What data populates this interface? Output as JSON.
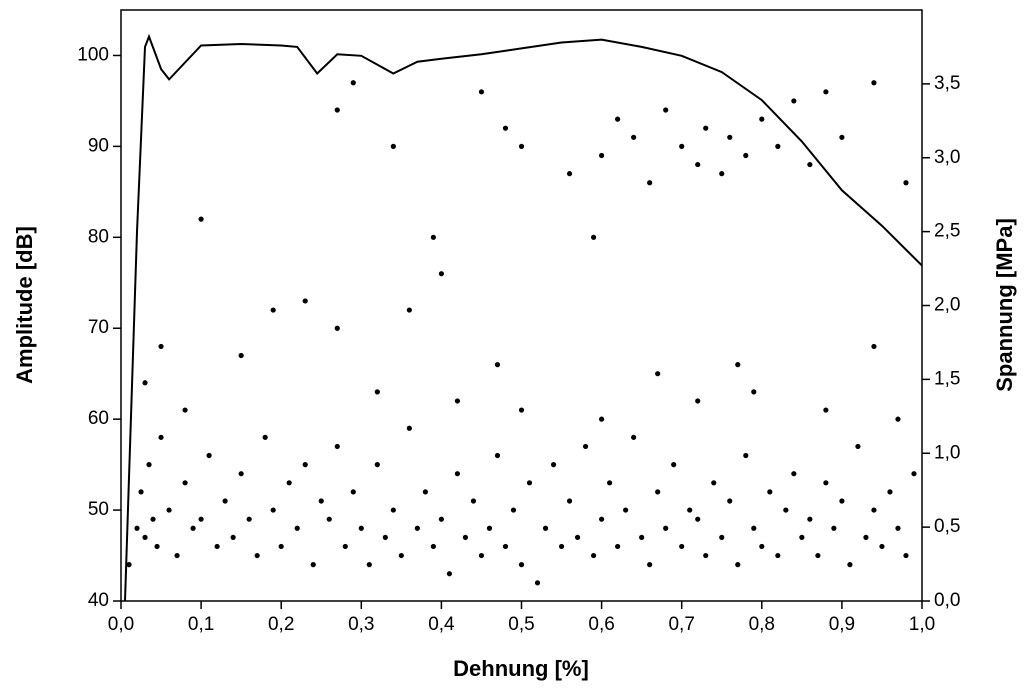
{
  "chart_data": {
    "type": "scatter",
    "xlabel": "Dehnung [%]",
    "ylabel": "Amplitude [dB]",
    "y2label": "Spannung [MPa]",
    "xlim": [
      0,
      1.0
    ],
    "ylim": [
      40,
      105
    ],
    "y2lim": [
      0,
      4.0
    ],
    "xticks": [
      {
        "value": 0,
        "label": "0,0"
      },
      {
        "value": 0.1,
        "label": "0,1"
      },
      {
        "value": 0.2,
        "label": "0,2"
      },
      {
        "value": 0.3,
        "label": "0,3"
      },
      {
        "value": 0.4,
        "label": "0,4"
      },
      {
        "value": 0.5,
        "label": "0,5"
      },
      {
        "value": 0.6,
        "label": "0,6"
      },
      {
        "value": 0.7,
        "label": "0,7"
      },
      {
        "value": 0.8,
        "label": "0,8"
      },
      {
        "value": 0.9,
        "label": "0,9"
      },
      {
        "value": 1.0,
        "label": "1,0"
      }
    ],
    "yticks": [
      40,
      50,
      60,
      70,
      80,
      90,
      100
    ],
    "y2ticks": [
      {
        "value": 0,
        "label": "0,0"
      },
      {
        "value": 0.5,
        "label": "0,5"
      },
      {
        "value": 1.0,
        "label": "1,0"
      },
      {
        "value": 1.5,
        "label": "1,5"
      },
      {
        "value": 2.0,
        "label": "2,0"
      },
      {
        "value": 2.5,
        "label": "2,5"
      },
      {
        "value": 3.0,
        "label": "3,0"
      },
      {
        "value": 3.5,
        "label": "3,5"
      }
    ],
    "series": [
      {
        "type": "scatter",
        "color": "#000000",
        "x": [
          0.01,
          0.02,
          0.025,
          0.03,
          0.035,
          0.04,
          0.045,
          0.05,
          0.06,
          0.07,
          0.08,
          0.09,
          0.1,
          0.11,
          0.12,
          0.13,
          0.14,
          0.15,
          0.16,
          0.17,
          0.18,
          0.19,
          0.2,
          0.21,
          0.22,
          0.23,
          0.24,
          0.25,
          0.26,
          0.27,
          0.28,
          0.29,
          0.3,
          0.31,
          0.32,
          0.33,
          0.34,
          0.35,
          0.36,
          0.37,
          0.38,
          0.39,
          0.4,
          0.41,
          0.42,
          0.43,
          0.44,
          0.45,
          0.46,
          0.47,
          0.48,
          0.49,
          0.5,
          0.51,
          0.52,
          0.53,
          0.54,
          0.55,
          0.56,
          0.57,
          0.58,
          0.59,
          0.6,
          0.61,
          0.62,
          0.63,
          0.64,
          0.65,
          0.66,
          0.67,
          0.68,
          0.69,
          0.7,
          0.71,
          0.72,
          0.73,
          0.74,
          0.75,
          0.76,
          0.77,
          0.78,
          0.79,
          0.8,
          0.81,
          0.82,
          0.83,
          0.84,
          0.85,
          0.86,
          0.87,
          0.88,
          0.89,
          0.9,
          0.91,
          0.92,
          0.93,
          0.94,
          0.95,
          0.96,
          0.97,
          0.98,
          0.99,
          0.03,
          0.05,
          0.08,
          0.15,
          0.19,
          0.23,
          0.27,
          0.32,
          0.36,
          0.42,
          0.47,
          0.5,
          0.6,
          0.67,
          0.72,
          0.77,
          0.79,
          0.88,
          0.94,
          0.97,
          0.1,
          0.27,
          0.29,
          0.34,
          0.39,
          0.4,
          0.45,
          0.48,
          0.5,
          0.56,
          0.59,
          0.6,
          0.62,
          0.64,
          0.66,
          0.68,
          0.7,
          0.72,
          0.73,
          0.75,
          0.76,
          0.78,
          0.8,
          0.82,
          0.84,
          0.86,
          0.88,
          0.9,
          0.94,
          0.98
        ],
        "values": [
          44,
          48,
          52,
          47,
          55,
          49,
          46,
          58,
          50,
          45,
          53,
          48,
          49,
          56,
          46,
          51,
          47,
          54,
          49,
          45,
          58,
          50,
          46,
          53,
          48,
          55,
          44,
          51,
          49,
          57,
          46,
          52,
          48,
          44,
          55,
          47,
          50,
          45,
          59,
          48,
          52,
          46,
          49,
          43,
          54,
          47,
          51,
          45,
          48,
          56,
          46,
          50,
          44,
          53,
          42,
          48,
          55,
          46,
          51,
          47,
          57,
          45,
          49,
          53,
          46,
          50,
          58,
          47,
          44,
          52,
          48,
          55,
          46,
          50,
          49,
          45,
          53,
          47,
          51,
          44,
          56,
          48,
          46,
          52,
          45,
          50,
          54,
          47,
          49,
          45,
          53,
          48,
          51,
          44,
          57,
          47,
          50,
          46,
          52,
          48,
          45,
          54,
          64,
          68,
          61,
          67,
          72,
          73,
          70,
          63,
          72,
          62,
          66,
          61,
          60,
          65,
          62,
          66,
          63,
          61,
          68,
          60,
          82,
          94,
          97,
          90,
          80,
          76,
          96,
          92,
          90,
          87,
          80,
          89,
          93,
          91,
          86,
          94,
          90,
          88,
          92,
          87,
          91,
          89,
          93,
          90,
          95,
          88,
          96,
          91,
          97,
          86
        ]
      },
      {
        "type": "line",
        "axis": "y2",
        "color": "#000000",
        "x": [
          0.005,
          0.02,
          0.03,
          0.035,
          0.05,
          0.06,
          0.1,
          0.15,
          0.2,
          0.22,
          0.245,
          0.27,
          0.3,
          0.34,
          0.37,
          0.4,
          0.45,
          0.5,
          0.55,
          0.6,
          0.65,
          0.7,
          0.75,
          0.8,
          0.85,
          0.9,
          0.95,
          1.0
        ],
        "values": [
          0.0,
          2.5,
          3.75,
          3.82,
          3.6,
          3.53,
          3.76,
          3.77,
          3.76,
          3.75,
          3.57,
          3.7,
          3.69,
          3.57,
          3.65,
          3.67,
          3.7,
          3.74,
          3.78,
          3.8,
          3.75,
          3.69,
          3.58,
          3.39,
          3.11,
          2.78,
          2.54,
          2.27
        ]
      }
    ]
  }
}
